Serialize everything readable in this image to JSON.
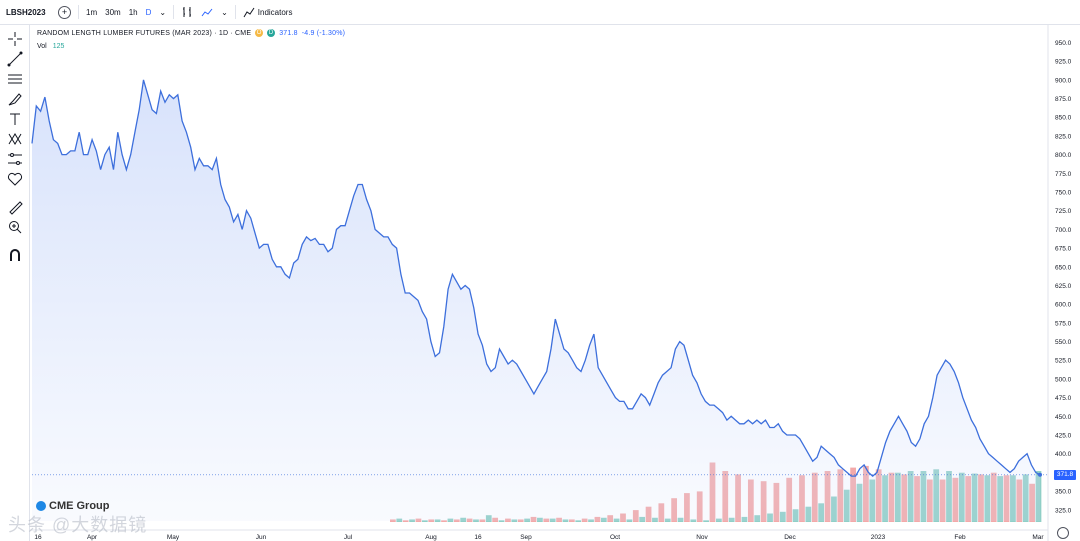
{
  "toolbar": {
    "symbol": "LBSH2023",
    "intervals": [
      "1m",
      "30m",
      "1h"
    ],
    "active_interval": "D",
    "indicators_label": "Indicators"
  },
  "legend": {
    "title": "RANDOM LENGTH LUMBER FUTURES (MAR 2023) · 1D · CME",
    "badge_o": "O",
    "badge_d": "D",
    "last": "371.8",
    "change": "-4.9 (-1.30%)",
    "vol_label": "Vol",
    "vol_value": "125"
  },
  "branding": {
    "cme": "CME Group",
    "watermark": "头条 @大数据镜"
  },
  "colors": {
    "line": "#3d6fdc",
    "area": "#d6e1fb",
    "vol_up": "#7cc7bd",
    "vol_down": "#f19a9a",
    "price_tag": "#2962ff"
  },
  "chart_data": {
    "type": "area",
    "title": "RANDOM LENGTH LUMBER FUTURES (MAR 2023) · 1D · CME",
    "x_tick_labels": [
      "16",
      "Apr",
      "May",
      "Jun",
      "Jul",
      "Aug",
      "16",
      "Sep",
      "Oct",
      "Nov",
      "Dec",
      "2023",
      "Feb",
      "Mar"
    ],
    "y_tick_labels": [
      "325.0",
      "350.0",
      "375.0",
      "400.0",
      "425.0",
      "450.0",
      "475.0",
      "500.0",
      "525.0",
      "550.0",
      "575.0",
      "600.0",
      "625.0",
      "650.0",
      "675.0",
      "700.0",
      "725.0",
      "750.0",
      "775.0",
      "800.0",
      "825.0",
      "850.0",
      "875.0",
      "900.0",
      "925.0",
      "950.0"
    ],
    "ylim": [
      310,
      960
    ],
    "last_price": 371.8,
    "grid": false,
    "series": [
      {
        "name": "LBSH2023",
        "values": [
          815,
          865,
          858,
          877,
          845,
          820,
          815,
          800,
          800,
          805,
          805,
          830,
          800,
          800,
          820,
          805,
          780,
          800,
          810,
          780,
          830,
          800,
          780,
          800,
          830,
          860,
          900,
          880,
          860,
          855,
          885,
          870,
          880,
          875,
          880,
          845,
          830,
          810,
          780,
          795,
          785,
          785,
          780,
          795,
          760,
          740,
          730,
          710,
          720,
          700,
          725,
          715,
          695,
          675,
          680,
          680,
          660,
          650,
          650,
          640,
          635,
          655,
          660,
          680,
          690,
          685,
          688,
          680,
          680,
          670,
          675,
          700,
          705,
          705,
          725,
          745,
          760,
          760,
          740,
          725,
          700,
          695,
          690,
          690,
          680,
          675,
          640,
          615,
          615,
          610,
          605,
          590,
          580,
          550,
          530,
          535,
          570,
          620,
          640,
          630,
          620,
          625,
          620,
          595,
          560,
          545,
          520,
          510,
          515,
          540,
          530,
          520,
          525,
          520,
          510,
          500,
          490,
          480,
          490,
          500,
          510,
          540,
          580,
          560,
          540,
          535,
          525,
          515,
          510,
          525,
          545,
          560,
          515,
          505,
          495,
          485,
          475,
          470,
          470,
          460,
          460,
          470,
          480,
          475,
          465,
          480,
          495,
          505,
          510,
          515,
          540,
          550,
          545,
          525,
          505,
          495,
          480,
          470,
          465,
          465,
          460,
          455,
          445,
          450,
          445,
          440,
          440,
          445,
          440,
          445,
          440,
          445,
          435,
          435,
          440,
          430,
          425,
          425,
          425,
          420,
          410,
          400,
          390,
          395,
          410,
          405,
          400,
          395,
          385,
          380,
          375,
          370,
          370,
          380,
          385,
          375,
          370,
          375,
          395,
          415,
          430,
          440,
          450,
          440,
          430,
          415,
          410,
          420,
          440,
          450,
          475,
          505,
          515,
          525,
          520,
          510,
          495,
          475,
          460,
          445,
          435,
          420,
          410,
          400,
          395,
          390,
          385,
          380,
          375,
          380,
          390,
          395,
          400,
          385,
          375,
          371.8
        ]
      }
    ],
    "volume": {
      "up": [
        4,
        3,
        2,
        3,
        4,
        5,
        3,
        8,
        2,
        3,
        4,
        5,
        4,
        3,
        2,
        3,
        5,
        4,
        3,
        6,
        5,
        4,
        5,
        3,
        2,
        4,
        5,
        6,
        8,
        10,
        12,
        15,
        18,
        22,
        30,
        38,
        45,
        50,
        55,
        58,
        60,
        60,
        62,
        60,
        58,
        57,
        55,
        54,
        55,
        56,
        60
      ],
      "down": [
        3,
        2,
        4,
        3,
        2,
        3,
        4,
        3,
        5,
        4,
        3,
        6,
        4,
        5,
        3,
        4,
        6,
        8,
        10,
        14,
        18,
        22,
        28,
        34,
        36,
        70,
        60,
        56,
        50,
        48,
        46,
        52,
        55,
        58,
        60,
        62,
        64,
        66,
        62,
        58,
        56,
        54,
        50,
        50,
        52,
        54,
        56,
        58,
        55,
        50,
        45
      ]
    }
  }
}
